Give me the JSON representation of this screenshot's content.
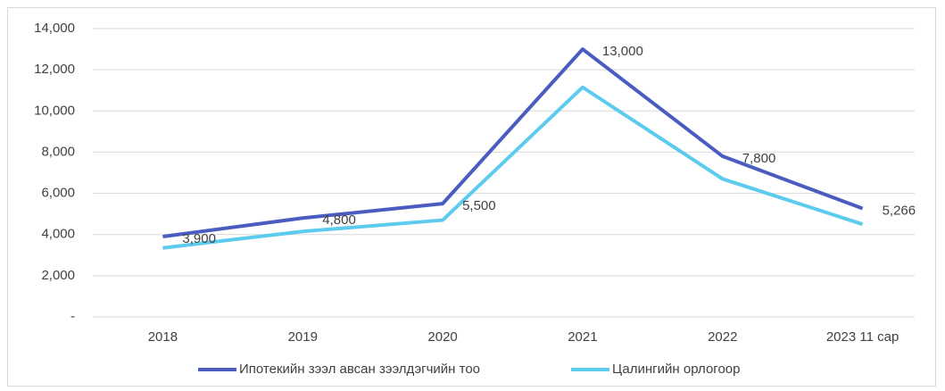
{
  "chart_data": {
    "type": "line",
    "categories": [
      "2018",
      "2019",
      "2020",
      "2021",
      "2022",
      "2023 11 сар"
    ],
    "series": [
      {
        "name": "Ипотекийн зээл авсан зээлдэгчийн тоо",
        "color": "#4a5cbf",
        "values": [
          3900,
          4800,
          5500,
          13000,
          7800,
          5266
        ],
        "value_labels": [
          "3,900",
          "4,800",
          "5,500",
          "13,000",
          "7,800",
          "5,266"
        ]
      },
      {
        "name": "Цалингийн орлогоор",
        "color": "#5ccbee",
        "values": [
          3350,
          4150,
          4700,
          11150,
          6700,
          4500
        ]
      }
    ],
    "ylim": [
      0,
      14000
    ],
    "yticks": [
      {
        "value": 0,
        "label": "-"
      },
      {
        "value": 2000,
        "label": "2,000"
      },
      {
        "value": 4000,
        "label": "4,000"
      },
      {
        "value": 6000,
        "label": "6,000"
      },
      {
        "value": 8000,
        "label": "8,000"
      },
      {
        "value": 10000,
        "label": "10,000"
      },
      {
        "value": 12000,
        "label": "12,000"
      },
      {
        "value": 14000,
        "label": "14,000"
      }
    ],
    "grid": true,
    "legend": "bottom"
  }
}
